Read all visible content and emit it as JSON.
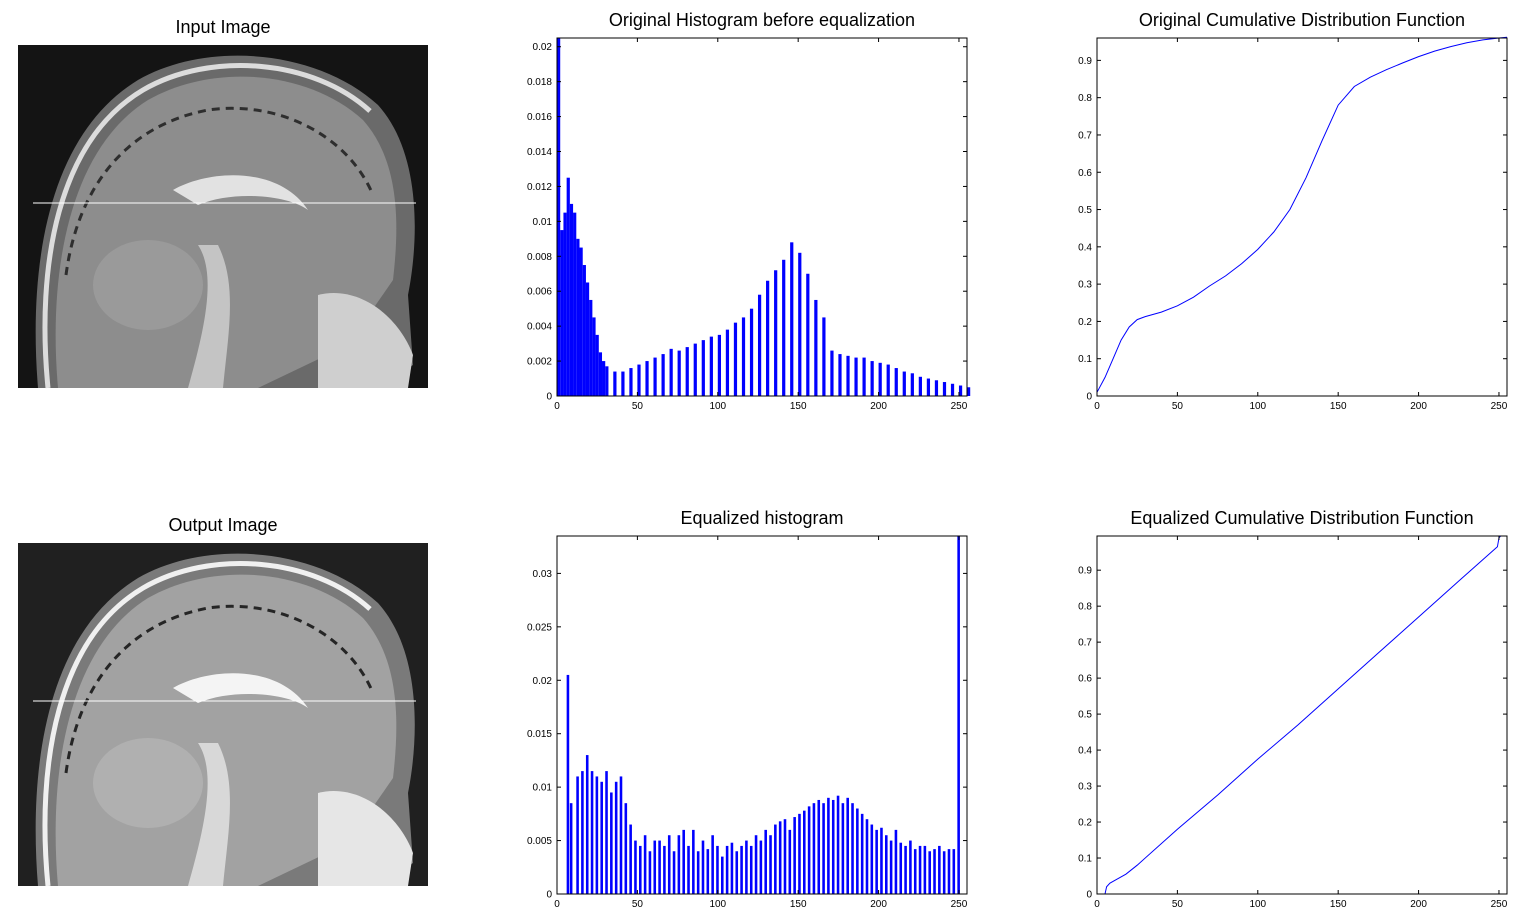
{
  "colors": {
    "bar": "#0000ff",
    "line": "#0000ff",
    "axis": "#000000"
  },
  "images": {
    "input_title": "Input Image",
    "output_title": "Output Image"
  },
  "chart_data": [
    {
      "id": "orig_hist",
      "type": "bar",
      "title": "Original Histogram before equalization",
      "xlabel": "",
      "ylabel": "",
      "xlim": [
        0,
        255
      ],
      "ylim": [
        0,
        0.0205
      ],
      "xticks": [
        0,
        50,
        100,
        150,
        200,
        250
      ],
      "yticks": [
        0,
        0.002,
        0.004,
        0.006,
        0.008,
        0.01,
        0.012,
        0.014,
        0.016,
        0.018,
        0.02
      ],
      "ytick_labels": [
        "0",
        "0.002",
        "0.004",
        "0.006",
        "0.008",
        "0.01",
        "0.012",
        "0.014",
        "0.016",
        "0.018",
        "0.02"
      ],
      "grid": false,
      "x": [
        0,
        2,
        4,
        6,
        8,
        10,
        12,
        14,
        16,
        18,
        20,
        22,
        24,
        26,
        28,
        30,
        35,
        40,
        45,
        50,
        55,
        60,
        65,
        70,
        75,
        80,
        85,
        90,
        95,
        100,
        105,
        110,
        115,
        120,
        125,
        130,
        135,
        140,
        145,
        150,
        155,
        160,
        165,
        170,
        175,
        180,
        185,
        190,
        195,
        200,
        205,
        210,
        215,
        220,
        225,
        230,
        235,
        240,
        245,
        250,
        255
      ],
      "values": [
        0.0205,
        0.0095,
        0.0105,
        0.0125,
        0.011,
        0.0105,
        0.009,
        0.0085,
        0.0075,
        0.0065,
        0.0055,
        0.0045,
        0.0035,
        0.0025,
        0.002,
        0.0017,
        0.0014,
        0.0014,
        0.0016,
        0.0018,
        0.002,
        0.0022,
        0.0024,
        0.0027,
        0.0026,
        0.0028,
        0.003,
        0.0032,
        0.0034,
        0.0035,
        0.0038,
        0.0042,
        0.0045,
        0.005,
        0.0058,
        0.0066,
        0.0072,
        0.0078,
        0.0088,
        0.0082,
        0.007,
        0.0055,
        0.0045,
        0.0026,
        0.0024,
        0.0023,
        0.0022,
        0.0022,
        0.002,
        0.0019,
        0.0018,
        0.0016,
        0.0014,
        0.0013,
        0.0011,
        0.001,
        0.0009,
        0.0008,
        0.0007,
        0.0006,
        0.0005
      ]
    },
    {
      "id": "orig_cdf",
      "type": "line",
      "title": "Original Cumulative Distribution Function",
      "xlabel": "",
      "ylabel": "",
      "xlim": [
        0,
        255
      ],
      "ylim": [
        0,
        0.96
      ],
      "xticks": [
        0,
        50,
        100,
        150,
        200,
        250
      ],
      "yticks": [
        0,
        0.1,
        0.2,
        0.3,
        0.4,
        0.5,
        0.6,
        0.7,
        0.8,
        0.9
      ],
      "ytick_labels": [
        "0",
        "0.1",
        "0.2",
        "0.3",
        "0.4",
        "0.5",
        "0.6",
        "0.7",
        "0.8",
        "0.9"
      ],
      "grid": false,
      "x": [
        0,
        5,
        10,
        15,
        20,
        25,
        30,
        40,
        50,
        60,
        70,
        80,
        90,
        100,
        110,
        120,
        130,
        140,
        150,
        160,
        170,
        180,
        190,
        200,
        210,
        220,
        230,
        240,
        250,
        255
      ],
      "values": [
        0.01,
        0.05,
        0.1,
        0.15,
        0.185,
        0.205,
        0.213,
        0.225,
        0.242,
        0.265,
        0.295,
        0.322,
        0.355,
        0.393,
        0.44,
        0.5,
        0.585,
        0.685,
        0.78,
        0.83,
        0.855,
        0.875,
        0.893,
        0.91,
        0.925,
        0.937,
        0.947,
        0.955,
        0.96,
        0.962
      ]
    },
    {
      "id": "eq_hist",
      "type": "bar",
      "title": "Equalized histogram",
      "xlabel": "",
      "ylabel": "",
      "xlim": [
        0,
        255
      ],
      "ylim": [
        0,
        0.0335
      ],
      "xticks": [
        0,
        50,
        100,
        150,
        200,
        250
      ],
      "yticks": [
        0,
        0.005,
        0.01,
        0.015,
        0.02,
        0.025,
        0.03
      ],
      "ytick_labels": [
        "0",
        "0.005",
        "0.01",
        "0.015",
        "0.02",
        "0.025",
        "0.03"
      ],
      "grid": false,
      "x": [
        6,
        8,
        12,
        15,
        18,
        21,
        24,
        27,
        30,
        33,
        36,
        39,
        42,
        45,
        48,
        51,
        54,
        57,
        60,
        63,
        66,
        69,
        72,
        75,
        78,
        81,
        84,
        87,
        90,
        93,
        96,
        99,
        102,
        105,
        108,
        111,
        114,
        117,
        120,
        123,
        126,
        129,
        132,
        135,
        138,
        141,
        144,
        147,
        150,
        153,
        156,
        159,
        162,
        165,
        168,
        171,
        174,
        177,
        180,
        183,
        186,
        189,
        192,
        195,
        198,
        201,
        204,
        207,
        210,
        213,
        216,
        219,
        222,
        225,
        228,
        231,
        234,
        237,
        240,
        243,
        246,
        249
      ],
      "values": [
        0.0205,
        0.0085,
        0.011,
        0.0115,
        0.013,
        0.0115,
        0.011,
        0.0105,
        0.0115,
        0.0095,
        0.0105,
        0.011,
        0.0085,
        0.0065,
        0.005,
        0.0045,
        0.0055,
        0.004,
        0.005,
        0.005,
        0.0045,
        0.0055,
        0.004,
        0.0055,
        0.006,
        0.0045,
        0.006,
        0.004,
        0.005,
        0.0042,
        0.0055,
        0.0045,
        0.0035,
        0.0045,
        0.0048,
        0.004,
        0.0045,
        0.005,
        0.0045,
        0.0055,
        0.005,
        0.006,
        0.0055,
        0.0065,
        0.0068,
        0.007,
        0.006,
        0.0072,
        0.0075,
        0.0078,
        0.0082,
        0.0085,
        0.0088,
        0.0085,
        0.009,
        0.0088,
        0.0092,
        0.0085,
        0.009,
        0.0085,
        0.008,
        0.0075,
        0.007,
        0.0065,
        0.006,
        0.0062,
        0.0055,
        0.005,
        0.006,
        0.0048,
        0.0045,
        0.005,
        0.0042,
        0.0045,
        0.0045,
        0.004,
        0.0042,
        0.0045,
        0.004,
        0.0042,
        0.0042,
        0.0335
      ]
    },
    {
      "id": "eq_cdf",
      "type": "line",
      "title": "Equalized Cumulative Distribution Function",
      "xlabel": "",
      "ylabel": "",
      "xlim": [
        0,
        255
      ],
      "ylim": [
        0,
        0.995
      ],
      "xticks": [
        0,
        50,
        100,
        150,
        200,
        250
      ],
      "yticks": [
        0,
        0.1,
        0.2,
        0.3,
        0.4,
        0.5,
        0.6,
        0.7,
        0.8,
        0.9
      ],
      "ytick_labels": [
        "0",
        "0.1",
        "0.2",
        "0.3",
        "0.4",
        "0.5",
        "0.6",
        "0.7",
        "0.8",
        "0.9"
      ],
      "grid": false,
      "x": [
        5,
        6,
        8,
        12,
        18,
        25,
        50,
        75,
        100,
        125,
        150,
        175,
        200,
        225,
        249,
        250,
        251
      ],
      "values": [
        0,
        0.02,
        0.03,
        0.04,
        0.055,
        0.08,
        0.18,
        0.275,
        0.375,
        0.47,
        0.57,
        0.67,
        0.77,
        0.87,
        0.965,
        0.99,
        0.995
      ]
    }
  ]
}
